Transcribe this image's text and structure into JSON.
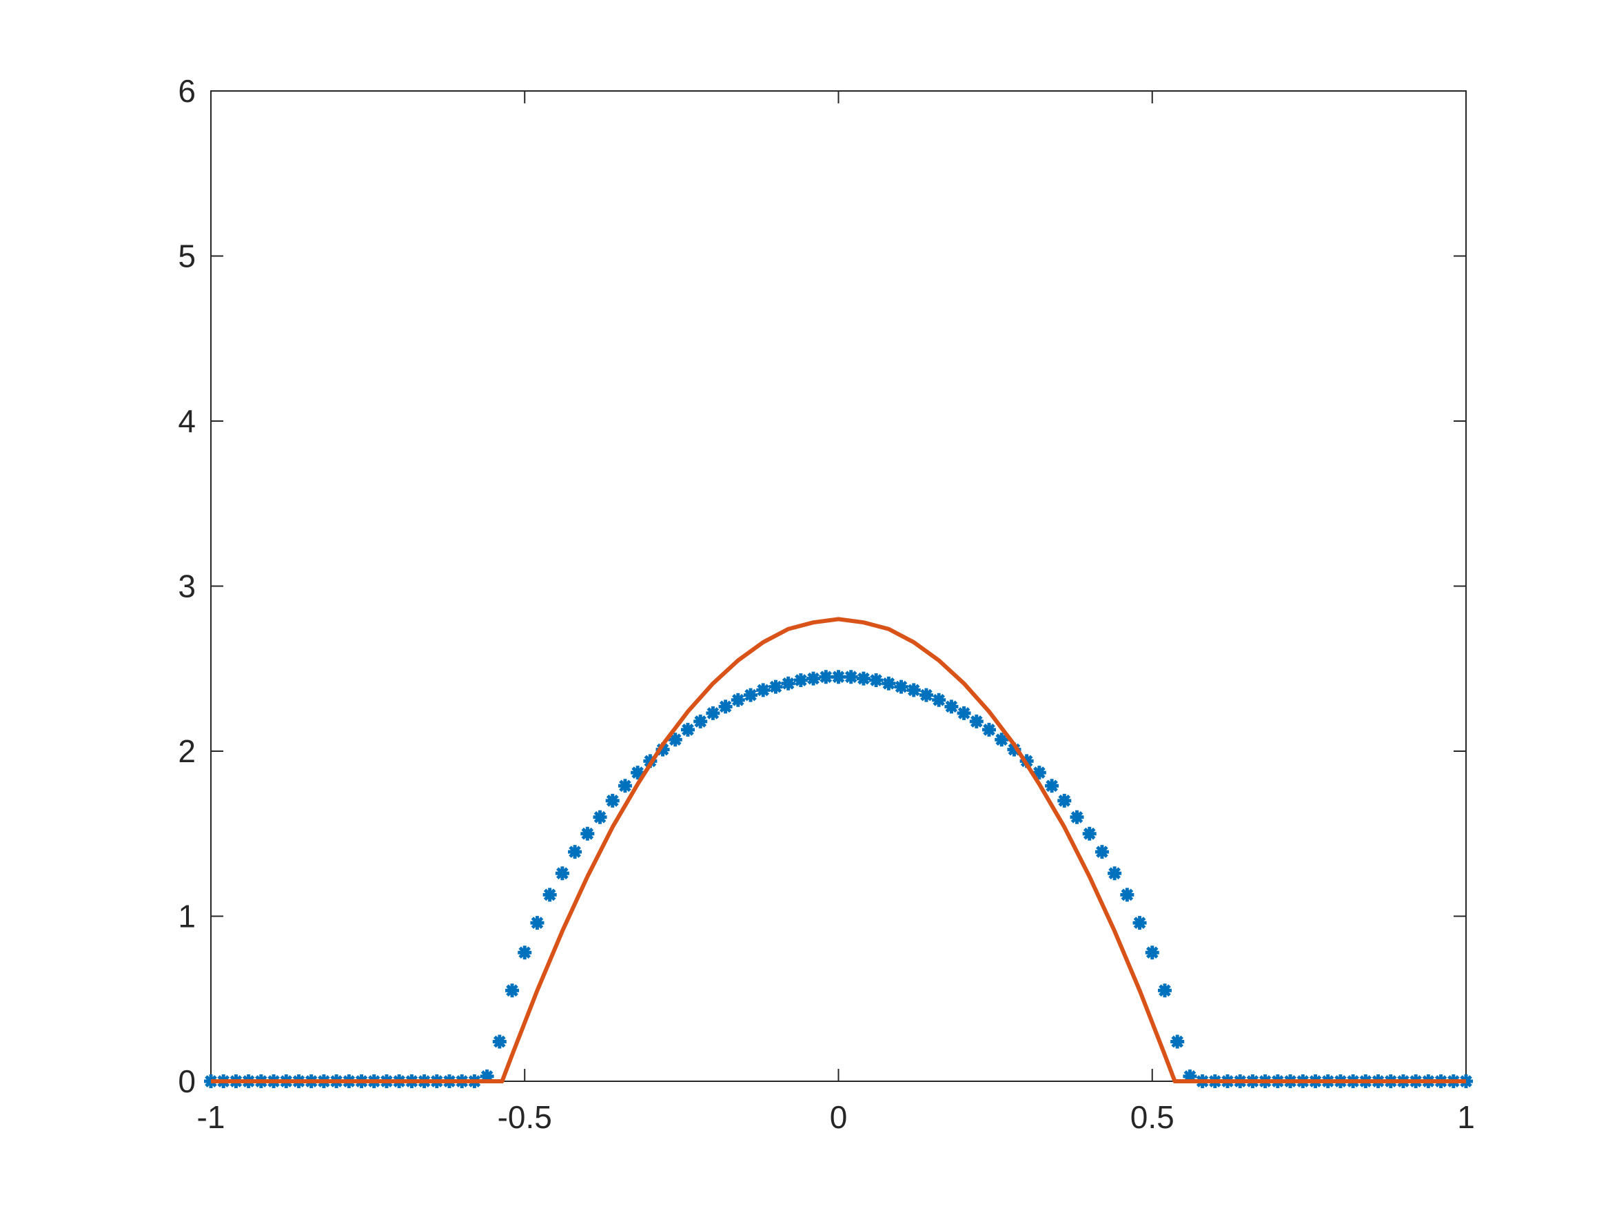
{
  "chart_data": {
    "type": "scatter",
    "xlim": [
      -1,
      1
    ],
    "ylim": [
      0,
      6
    ],
    "xticks": [
      -1,
      -0.5,
      0,
      0.5,
      1
    ],
    "yticks": [
      0,
      1,
      2,
      3,
      4,
      5,
      6
    ],
    "series": [
      {
        "mode": "markers",
        "color": "#0072bd",
        "x": [
          -1,
          -0.98,
          -0.96,
          -0.94,
          -0.92,
          -0.9,
          -0.88,
          -0.86,
          -0.84,
          -0.82,
          -0.8,
          -0.78,
          -0.76,
          -0.74,
          -0.72,
          -0.7,
          -0.68,
          -0.66,
          -0.64,
          -0.62,
          -0.6,
          -0.58,
          -0.56,
          -0.54,
          -0.52,
          -0.5,
          -0.48,
          -0.46,
          -0.44,
          -0.42,
          -0.4,
          -0.38,
          -0.36,
          -0.34,
          -0.32,
          -0.3,
          -0.28,
          -0.26,
          -0.24,
          -0.22,
          -0.2,
          -0.18,
          -0.16,
          -0.14,
          -0.12,
          -0.1,
          -0.08,
          -0.06,
          -0.04,
          -0.02,
          0,
          0.02,
          0.04,
          0.06,
          0.08,
          0.1,
          0.12,
          0.14,
          0.16,
          0.18,
          0.2,
          0.22,
          0.24,
          0.26,
          0.28,
          0.3,
          0.32,
          0.34,
          0.36,
          0.38,
          0.4,
          0.42,
          0.44,
          0.46,
          0.48,
          0.5,
          0.52,
          0.54,
          0.56,
          0.58,
          0.6,
          0.62,
          0.64,
          0.66,
          0.68,
          0.7,
          0.72,
          0.74,
          0.76,
          0.78,
          0.8,
          0.82,
          0.84,
          0.86,
          0.88,
          0.9,
          0.92,
          0.94,
          0.96,
          0.98,
          1
        ],
        "values": [
          0,
          0,
          0,
          0,
          0,
          0,
          0,
          0,
          0,
          0,
          0,
          0,
          0,
          0,
          0,
          0,
          0,
          0,
          0,
          0,
          0,
          0,
          0.03,
          0.24,
          0.55,
          0.78,
          0.96,
          1.13,
          1.26,
          1.39,
          1.5,
          1.6,
          1.7,
          1.79,
          1.87,
          1.94,
          2.01,
          2.07,
          2.13,
          2.18,
          2.23,
          2.27,
          2.31,
          2.34,
          2.37,
          2.39,
          2.41,
          2.43,
          2.44,
          2.45,
          2.45,
          2.45,
          2.44,
          2.43,
          2.41,
          2.39,
          2.37,
          2.34,
          2.31,
          2.27,
          2.23,
          2.18,
          2.13,
          2.07,
          2.01,
          1.94,
          1.87,
          1.79,
          1.7,
          1.6,
          1.5,
          1.39,
          1.26,
          1.13,
          0.96,
          0.78,
          0.55,
          0.24,
          0.03,
          0,
          0,
          0,
          0,
          0,
          0,
          0,
          0,
          0,
          0,
          0,
          0,
          0,
          0,
          0,
          0,
          0,
          0,
          0,
          0,
          0,
          0
        ]
      },
      {
        "mode": "line",
        "color": "#d95319",
        "x": [
          -1,
          -0.536,
          -0.52,
          -0.48,
          -0.44,
          -0.4,
          -0.36,
          -0.32,
          -0.28,
          -0.24,
          -0.2,
          -0.16,
          -0.12,
          -0.08,
          -0.04,
          0,
          0.04,
          0.08,
          0.12,
          0.16,
          0.2,
          0.24,
          0.28,
          0.32,
          0.36,
          0.4,
          0.44,
          0.48,
          0.52,
          0.536,
          1
        ],
        "values": [
          0,
          0,
          0.16,
          0.55,
          0.91,
          1.24,
          1.54,
          1.8,
          2.04,
          2.24,
          2.41,
          2.55,
          2.66,
          2.74,
          2.78,
          2.8,
          2.78,
          2.74,
          2.66,
          2.55,
          2.41,
          2.24,
          2.04,
          1.8,
          1.54,
          1.24,
          0.91,
          0.55,
          0.16,
          0,
          0
        ]
      }
    ]
  }
}
